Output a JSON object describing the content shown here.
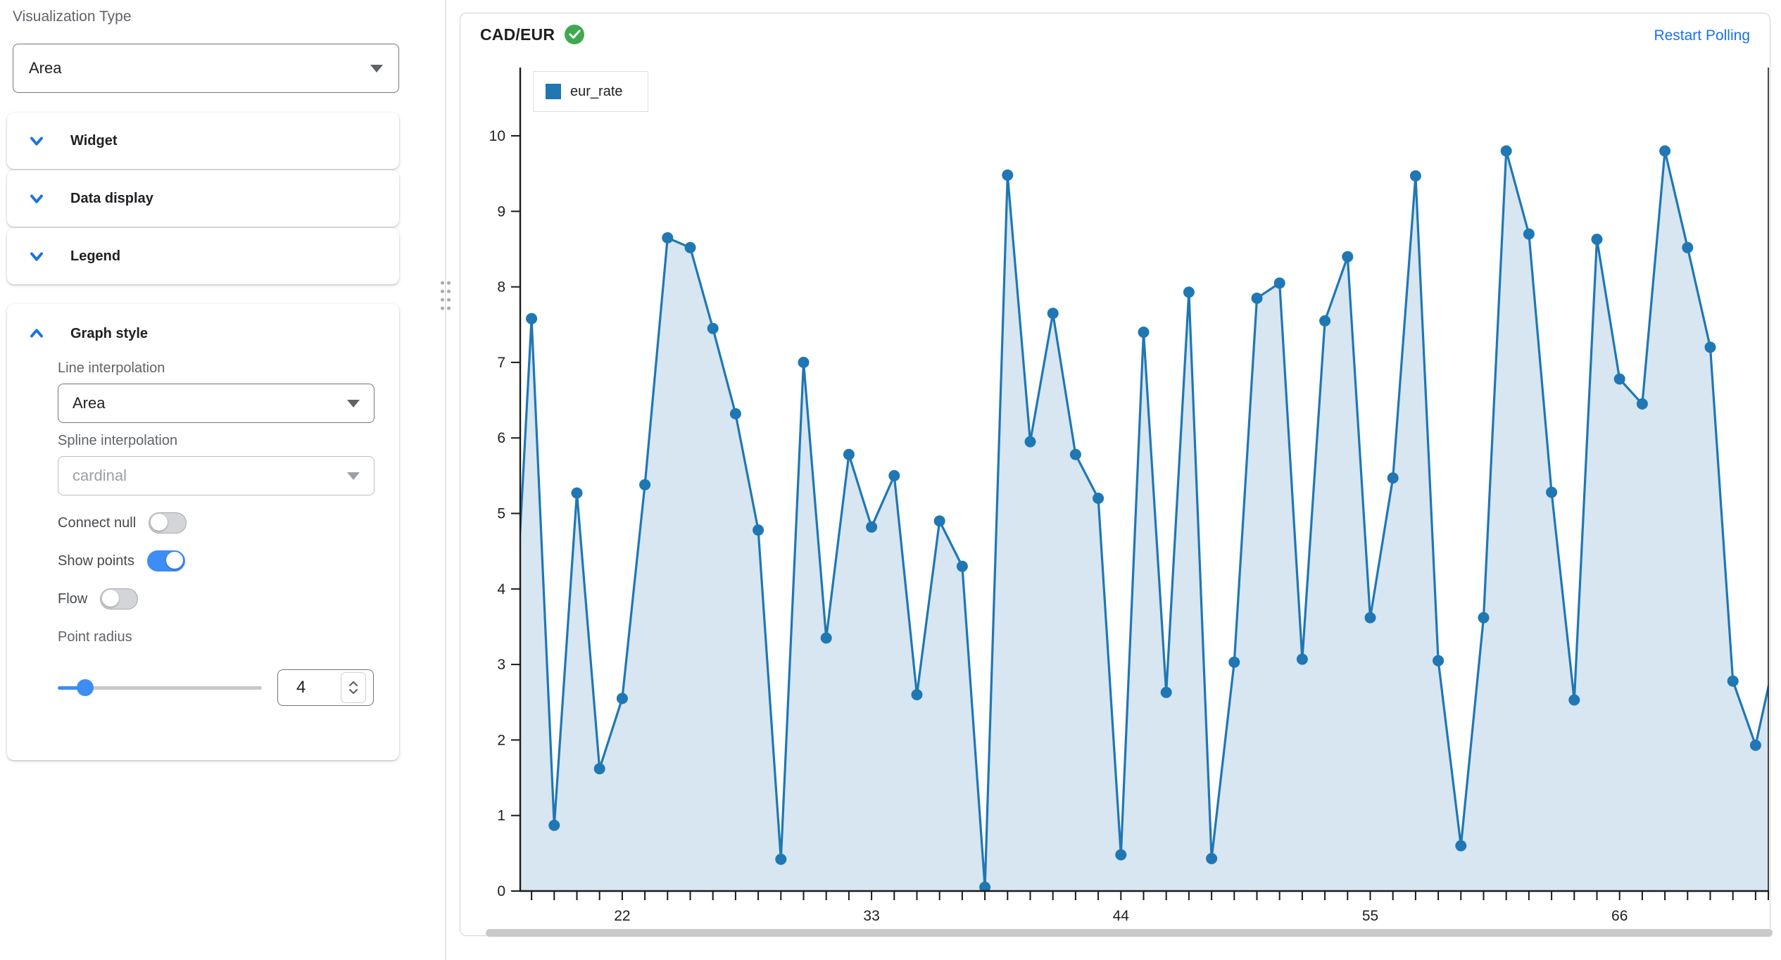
{
  "sidebar": {
    "visualization_type_label": "Visualization Type",
    "visualization_type_value": "Area",
    "sections": [
      {
        "label": "Widget",
        "state": "collapsed"
      },
      {
        "label": "Data display",
        "state": "collapsed"
      },
      {
        "label": "Legend",
        "state": "collapsed"
      }
    ],
    "graph_style": {
      "title": "Graph style",
      "state": "expanded",
      "line_interpolation_label": "Line interpolation",
      "line_interpolation_value": "Area",
      "spline_interpolation_label": "Spline interpolation",
      "spline_interpolation_value": "cardinal",
      "spline_interpolation_disabled": true,
      "connect_null_label": "Connect null",
      "connect_null_on": false,
      "show_points_label": "Show points",
      "show_points_on": true,
      "flow_label": "Flow",
      "flow_on": false,
      "point_radius_label": "Point radius",
      "point_radius_value": "4"
    }
  },
  "chart": {
    "title": "CAD/EUR",
    "status_icon": "check-circle",
    "status_color": "#3fa94f",
    "restart_link": "Restart Polling",
    "legend": {
      "label": "eur_rate",
      "swatch_color": "#1f77b4"
    }
  },
  "chart_data": {
    "type": "area",
    "title": "CAD/EUR",
    "xlabel": "",
    "ylabel": "",
    "ylim": [
      0,
      10
    ],
    "y_tick_interval": 1,
    "x_tick_interval": 1,
    "x_labeled_ticks": [
      22,
      33,
      44,
      55,
      66
    ],
    "grid": false,
    "legend_position": "inset-top-left",
    "point_radius_px": 8,
    "edge_points_clipped": true,
    "series": [
      {
        "name": "eur_rate",
        "color": "#1f77b4",
        "area_opacity": 0.18,
        "x": [
          17,
          18,
          19,
          20,
          21,
          22,
          23,
          24,
          25,
          26,
          27,
          28,
          29,
          30,
          31,
          32,
          33,
          34,
          35,
          36,
          37,
          38,
          39,
          40,
          41,
          42,
          43,
          44,
          45,
          46,
          47,
          48,
          49,
          50,
          51,
          52,
          53,
          54,
          55,
          56,
          57,
          58,
          59,
          60,
          61,
          62,
          63,
          64,
          65,
          66,
          67,
          68,
          69,
          70,
          71,
          72,
          73
        ],
        "y": [
          2.0,
          7.58,
          0.87,
          5.27,
          1.62,
          2.55,
          5.38,
          8.65,
          8.52,
          7.45,
          6.32,
          4.78,
          0.42,
          7.0,
          3.35,
          5.78,
          4.82,
          5.5,
          2.6,
          4.9,
          4.3,
          0.05,
          9.48,
          5.95,
          7.65,
          5.78,
          5.2,
          0.48,
          7.4,
          2.63,
          7.93,
          0.43,
          3.03,
          7.85,
          8.05,
          3.07,
          7.55,
          8.4,
          3.62,
          5.47,
          9.47,
          3.05,
          0.6,
          3.62,
          9.8,
          8.7,
          5.28,
          2.53,
          8.63,
          6.78,
          6.45,
          9.8,
          8.52,
          7.2,
          2.78,
          1.93,
          3.3
        ]
      }
    ]
  },
  "colors": {
    "accent_blue": "#1a73e8",
    "toggle_on": "#3d8df5",
    "series_blue": "#1f77b4",
    "label_gray": "#5f6368",
    "axis_black": "#1a1a1a"
  }
}
